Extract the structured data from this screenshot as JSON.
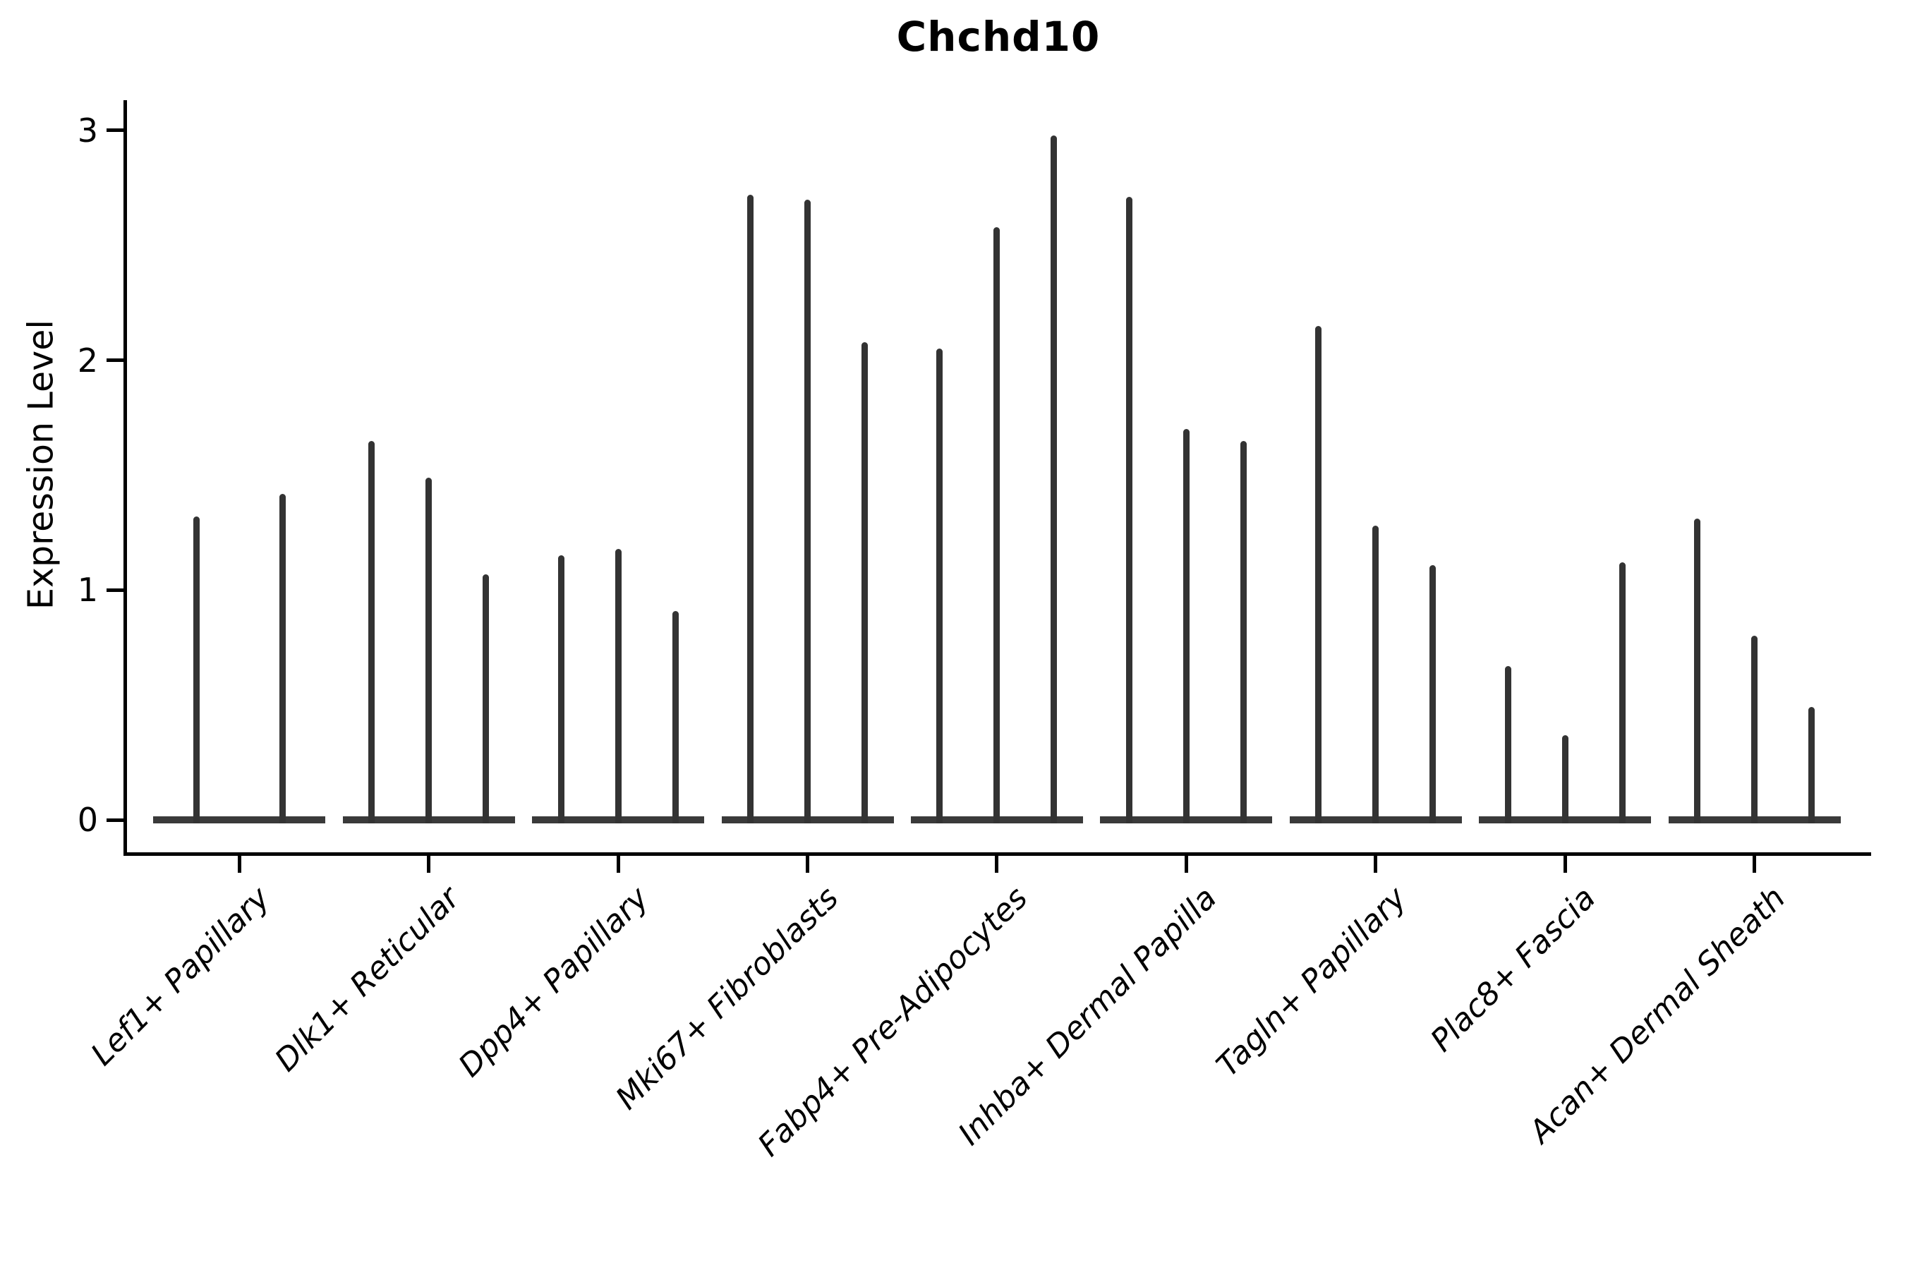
{
  "title": "Chchd10",
  "y_axis": {
    "label": "Expression Level",
    "tick_labels": [
      "0",
      "1",
      "2",
      "3"
    ],
    "tick_values": [
      0,
      1,
      2,
      3
    ]
  },
  "chart_data": {
    "type": "violin",
    "title": "Chchd10",
    "xlabel": "",
    "ylabel": "Expression Level",
    "ylim": [
      0,
      3.15
    ],
    "yticks": [
      0,
      1,
      2,
      3
    ],
    "grid": false,
    "legend": "none",
    "note": "stick-style violin plot; values are peak expression height per violin, 0 = baseline",
    "categories": [
      "Lef1+ Papillary",
      "Dlk1+ Reticular",
      "Dpp4+ Papillary",
      "Mki67+ Fibroblasts",
      "Fabp4+ Pre-Adipocytes",
      "Inhba+ Dermal Papilla",
      "Tagln+ Papillary",
      "Plac8+ Fascia",
      "Acan+ Dermal Sheath"
    ],
    "groups": [
      {
        "label": "Lef1+ Papillary",
        "peaks": [
          1.32,
          1.42
        ]
      },
      {
        "label": "Dlk1+ Reticular",
        "peaks": [
          1.65,
          1.49,
          1.07
        ]
      },
      {
        "label": "Dpp4+ Papillary",
        "peaks": [
          1.15,
          1.18,
          0.91
        ]
      },
      {
        "label": "Mki67+ Fibroblasts",
        "peaks": [
          2.72,
          2.7,
          2.08
        ]
      },
      {
        "label": "Fabp4+ Pre-Adipocytes",
        "peaks": [
          2.05,
          2.58,
          2.98
        ]
      },
      {
        "label": "Inhba+ Dermal Papilla",
        "peaks": [
          2.71,
          1.7,
          1.65
        ]
      },
      {
        "label": "Tagln+ Papillary",
        "peaks": [
          2.15,
          1.28,
          1.11
        ]
      },
      {
        "label": "Plac8+ Fascia",
        "peaks": [
          0.67,
          0.37,
          1.12
        ]
      },
      {
        "label": "Acan+ Dermal Sheath",
        "peaks": [
          1.31,
          0.8,
          0.49
        ]
      }
    ]
  },
  "style": {
    "violin_color": "#333333",
    "baseline_color": "#3a3a3a",
    "axis_color": "#000000",
    "text_color": "#000000",
    "background": "#ffffff"
  }
}
